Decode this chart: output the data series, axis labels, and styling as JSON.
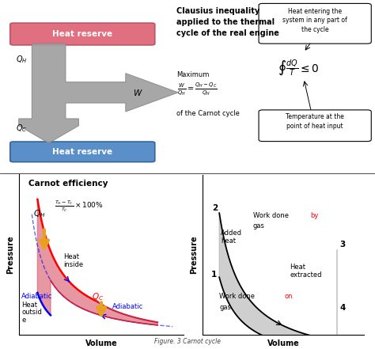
{
  "title": "Clausius inequality\napplied to the thermal\ncycle of the real engine",
  "carnot_title": "Carnot efficiency",
  "figure_caption": "Figure. 3 Carnot cycle",
  "callout1": "Heat entering the\nsystem in any part of\nthe cycle",
  "callout2": "Temperature at the\npoint of heat input",
  "eq1_label": "Maximum",
  "eq1_num": "W",
  "eq1_den": "Q_H",
  "eq1_rhs_num": "Q_H - Q_C",
  "eq1_rhs_den": "Q_H",
  "eq1_sub": "of the Carnot cycle",
  "eq2": "$\\oint\\dfrac{dQ}{T}\\leq 0$",
  "eff_formula": "$\\dfrac{T_H-T_C}{T_C}\\times100\\%$",
  "box1_color": "#e07080",
  "box2_color": "#5b8fc9",
  "arrow_color": "#a0a0a0",
  "arrow_edge": "#888888"
}
